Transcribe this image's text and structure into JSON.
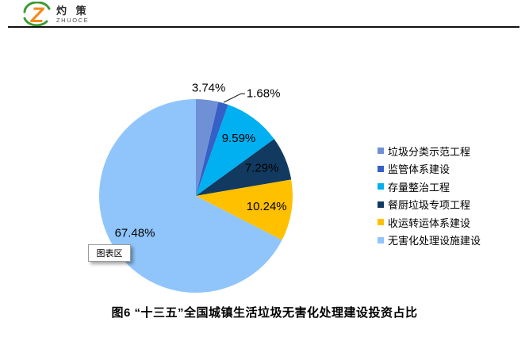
{
  "header": {
    "logo": {
      "z_letter": "Z",
      "brand_cn": "灼 策",
      "brand_en": "ZHUOCE",
      "colors": {
        "orange": "#F28B1D",
        "green": "#3E9B35"
      }
    }
  },
  "tooltip": {
    "label": "图表区"
  },
  "title": {
    "text": "图6 “十三五”全国城镇生活垃圾无害化处理建设投资占比"
  },
  "chart_data": {
    "type": "pie",
    "title": "图6 “十三五”全国城镇生活垃圾无害化处理建设投资占比",
    "start_angle_deg": 0,
    "direction": "clockwise",
    "legend_position": "right",
    "slices": [
      {
        "label": "垃圾分类示范工程",
        "value": 3.74,
        "display": "3.74%",
        "color": "#7090D6",
        "label_pos": "outside"
      },
      {
        "label": "监管体系建设",
        "value": 1.68,
        "display": "1.68%",
        "color": "#3560C6",
        "label_pos": "callout"
      },
      {
        "label": "存量整治工程",
        "value": 9.59,
        "display": "9.59%",
        "color": "#00B0F0",
        "label_pos": "inside"
      },
      {
        "label": "餐厨垃圾专项工程",
        "value": 7.29,
        "display": "7.29%",
        "color": "#123A60",
        "label_pos": "inside"
      },
      {
        "label": "收运转运体系建设",
        "value": 10.24,
        "display": "10.24%",
        "color": "#FFC000",
        "label_pos": "inside"
      },
      {
        "label": "无害化处理设施建设",
        "value": 67.48,
        "display": "67.48%",
        "color": "#90C5FC",
        "label_pos": "inside"
      }
    ]
  }
}
